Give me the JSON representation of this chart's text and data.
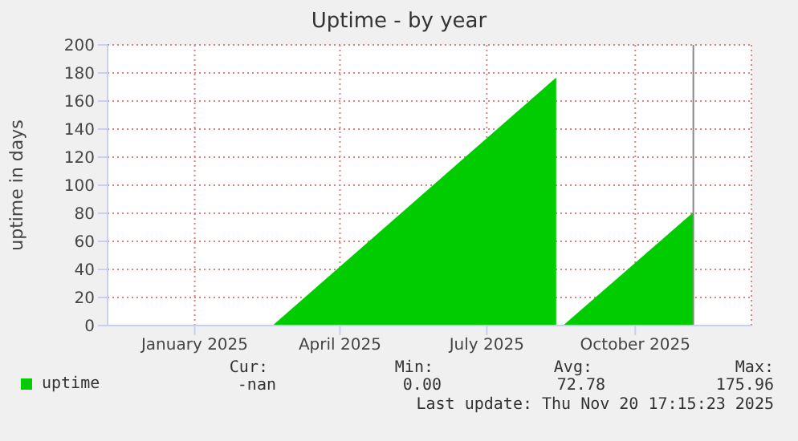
{
  "chart_data": {
    "type": "area",
    "title": "Uptime - by year",
    "ylabel": "uptime in days",
    "x": [
      "2025-03-05",
      "2025-08-27",
      "2025-08-28",
      "2025-09-01",
      "2025-11-20"
    ],
    "series": [
      {
        "name": "uptime",
        "color": "#00cc00",
        "values": [
          0,
          176,
          null,
          0,
          80
        ]
      }
    ],
    "xlim": [
      "2024-11-22",
      "2025-12-26"
    ],
    "xticks": [
      {
        "value": "2025-01-15",
        "label": "January 2025"
      },
      {
        "value": "2025-04-15",
        "label": "April 2025"
      },
      {
        "value": "2025-07-15",
        "label": "July 2025"
      },
      {
        "value": "2025-10-15",
        "label": "October 2025"
      }
    ],
    "ylim": [
      0,
      200
    ],
    "yticks": [
      0,
      20,
      40,
      60,
      80,
      100,
      120,
      140,
      160,
      180,
      200
    ],
    "grid": true,
    "legend": "bottom",
    "ref_lines": [
      {
        "axis": "x",
        "value": "2025-11-20",
        "color": "#888888"
      }
    ],
    "annotations": [
      "Cur:",
      "Min:",
      "Avg:",
      "Max:",
      "-nan",
      "0.00",
      "72.78",
      "175.96",
      "Last update: Thu Nov 20 17:15:23 2025"
    ]
  }
}
